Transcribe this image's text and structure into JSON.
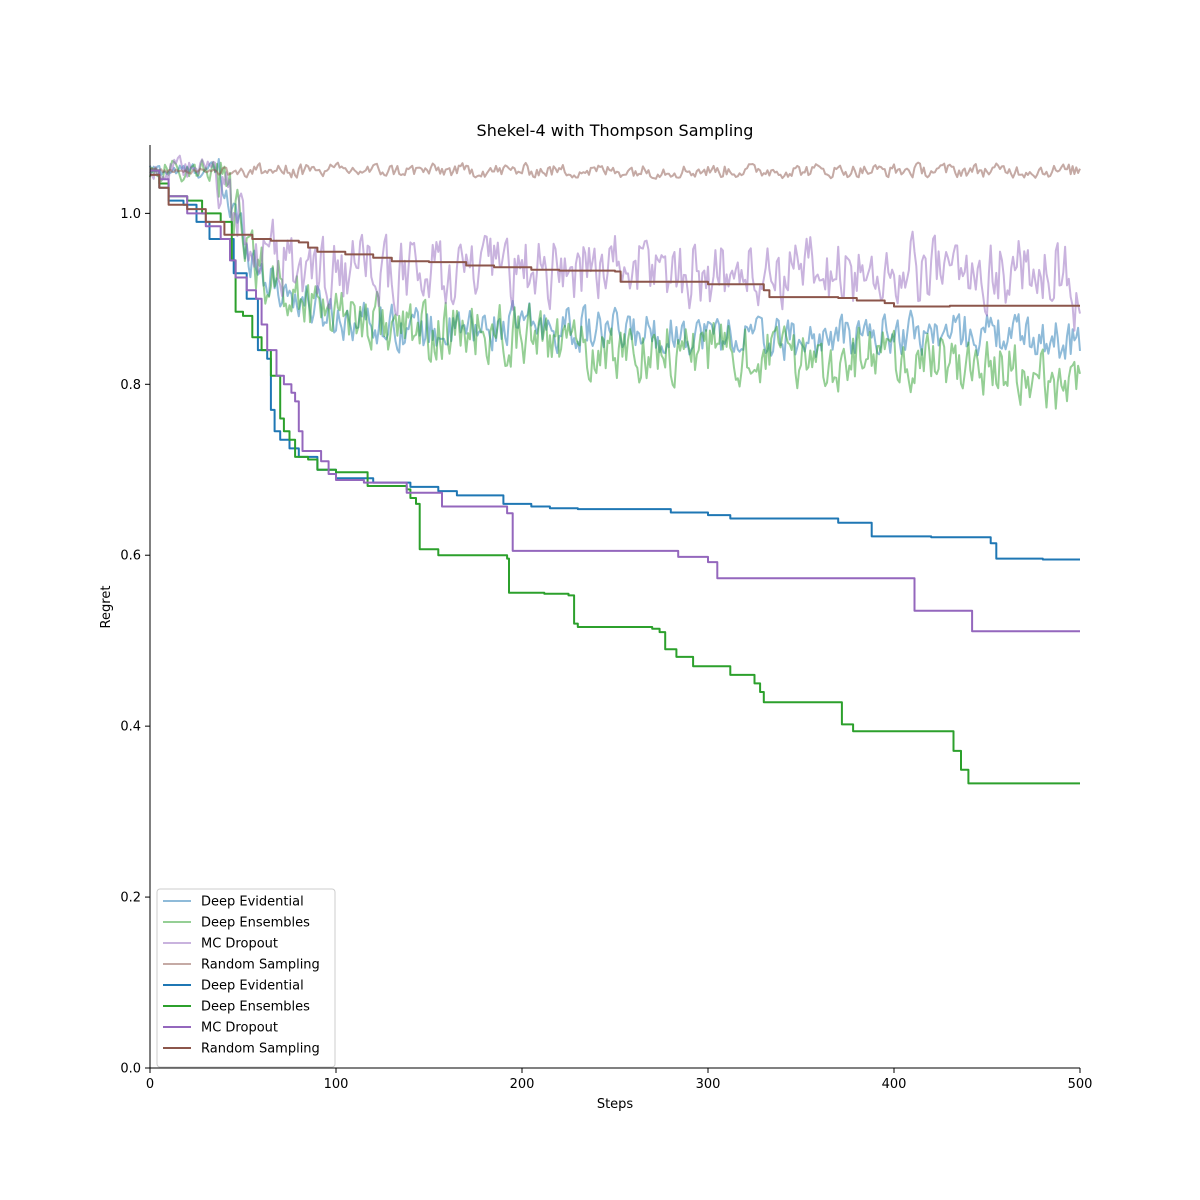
{
  "chart_data": {
    "type": "line",
    "title": "Shekel-4 with Thompson Sampling",
    "xlabel": "Steps",
    "ylabel": "Regret",
    "xlim": [
      0,
      500
    ],
    "ylim": [
      0,
      1.08
    ],
    "xticks": [
      0,
      100,
      200,
      300,
      400,
      500
    ],
    "yticks": [
      0.0,
      0.2,
      0.4,
      0.6,
      0.8,
      1.0
    ],
    "xtick_labels": [
      "0",
      "100",
      "200",
      "300",
      "400",
      "500"
    ],
    "ytick_labels": [
      "0.0",
      "0.2",
      "0.4",
      "0.6",
      "0.8",
      "1.0"
    ],
    "legend_position": "lower-left",
    "grid": false,
    "series": [
      {
        "name": "Deep Evidential",
        "color": "#1f77b4",
        "alpha": 0.5,
        "style": "noisy",
        "points": [
          [
            0,
            1.05
          ],
          [
            10,
            1.05
          ],
          [
            20,
            1.05
          ],
          [
            30,
            1.05
          ],
          [
            36,
            1.05
          ],
          [
            45,
            1.0
          ],
          [
            55,
            0.95
          ],
          [
            65,
            0.92
          ],
          [
            80,
            0.9
          ],
          [
            100,
            0.88
          ],
          [
            130,
            0.87
          ],
          [
            160,
            0.86
          ],
          [
            200,
            0.87
          ],
          [
            250,
            0.86
          ],
          [
            300,
            0.86
          ],
          [
            350,
            0.85
          ],
          [
            400,
            0.86
          ],
          [
            450,
            0.86
          ],
          [
            500,
            0.85
          ]
        ],
        "noise": 0.025
      },
      {
        "name": "Deep Ensembles",
        "color": "#2ca02c",
        "alpha": 0.5,
        "style": "noisy",
        "points": [
          [
            0,
            1.05
          ],
          [
            10,
            1.05
          ],
          [
            20,
            1.05
          ],
          [
            30,
            1.05
          ],
          [
            36,
            1.05
          ],
          [
            45,
            1.0
          ],
          [
            55,
            0.95
          ],
          [
            65,
            0.92
          ],
          [
            80,
            0.9
          ],
          [
            100,
            0.89
          ],
          [
            140,
            0.86
          ],
          [
            180,
            0.86
          ],
          [
            200,
            0.86
          ],
          [
            230,
            0.84
          ],
          [
            260,
            0.84
          ],
          [
            300,
            0.84
          ],
          [
            350,
            0.83
          ],
          [
            400,
            0.83
          ],
          [
            450,
            0.82
          ],
          [
            490,
            0.8
          ],
          [
            500,
            0.82
          ]
        ],
        "noise": 0.035
      },
      {
        "name": "MC Dropout",
        "color": "#9467bd",
        "alpha": 0.5,
        "style": "noisy",
        "points": [
          [
            0,
            1.05
          ],
          [
            10,
            1.05
          ],
          [
            20,
            1.05
          ],
          [
            30,
            1.05
          ],
          [
            36,
            1.05
          ],
          [
            45,
            1.0
          ],
          [
            60,
            0.96
          ],
          [
            80,
            0.93
          ],
          [
            100,
            0.93
          ],
          [
            150,
            0.93
          ],
          [
            200,
            0.93
          ],
          [
            250,
            0.94
          ],
          [
            300,
            0.93
          ],
          [
            350,
            0.93
          ],
          [
            400,
            0.93
          ],
          [
            450,
            0.93
          ],
          [
            490,
            0.94
          ],
          [
            500,
            0.87
          ]
        ],
        "noise": 0.04
      },
      {
        "name": "Random Sampling",
        "color": "#8c564b",
        "alpha": 0.5,
        "style": "noisy",
        "points": [
          [
            0,
            1.05
          ],
          [
            100,
            1.05
          ],
          [
            200,
            1.05
          ],
          [
            300,
            1.05
          ],
          [
            400,
            1.05
          ],
          [
            500,
            1.05
          ]
        ],
        "noise": 0.008
      },
      {
        "name": "Deep Evidential",
        "color": "#1f77b4",
        "alpha": 1,
        "style": "step",
        "points": [
          [
            0,
            1.05
          ],
          [
            5,
            1.03
          ],
          [
            10,
            1.015
          ],
          [
            18,
            1.01
          ],
          [
            25,
            0.99
          ],
          [
            32,
            0.97
          ],
          [
            38,
            0.97
          ],
          [
            45,
            0.93
          ],
          [
            52,
            0.9
          ],
          [
            58,
            0.84
          ],
          [
            63,
            0.83
          ],
          [
            65,
            0.77
          ],
          [
            67,
            0.745
          ],
          [
            70,
            0.735
          ],
          [
            75,
            0.725
          ],
          [
            80,
            0.715
          ],
          [
            90,
            0.7
          ],
          [
            100,
            0.69
          ],
          [
            120,
            0.685
          ],
          [
            140,
            0.68
          ],
          [
            155,
            0.675
          ],
          [
            165,
            0.67
          ],
          [
            190,
            0.66
          ],
          [
            205,
            0.657
          ],
          [
            215,
            0.655
          ],
          [
            230,
            0.654
          ],
          [
            280,
            0.65
          ],
          [
            300,
            0.647
          ],
          [
            312,
            0.643
          ],
          [
            370,
            0.638
          ],
          [
            388,
            0.622
          ],
          [
            420,
            0.621
          ],
          [
            452,
            0.614
          ],
          [
            455,
            0.596
          ],
          [
            480,
            0.595
          ],
          [
            500,
            0.595
          ]
        ]
      },
      {
        "name": "Deep Ensembles",
        "color": "#2ca02c",
        "alpha": 1,
        "style": "step",
        "points": [
          [
            0,
            1.05
          ],
          [
            5,
            1.035
          ],
          [
            10,
            1.02
          ],
          [
            20,
            1.015
          ],
          [
            28,
            1.0
          ],
          [
            38,
            0.99
          ],
          [
            44,
            0.945
          ],
          [
            46,
            0.885
          ],
          [
            50,
            0.88
          ],
          [
            55,
            0.855
          ],
          [
            60,
            0.84
          ],
          [
            65,
            0.81
          ],
          [
            70,
            0.76
          ],
          [
            72,
            0.745
          ],
          [
            75,
            0.735
          ],
          [
            78,
            0.715
          ],
          [
            85,
            0.712
          ],
          [
            90,
            0.7
          ],
          [
            100,
            0.697
          ],
          [
            117,
            0.681
          ],
          [
            138,
            0.677
          ],
          [
            140,
            0.667
          ],
          [
            143,
            0.66
          ],
          [
            145,
            0.607
          ],
          [
            155,
            0.6
          ],
          [
            192,
            0.596
          ],
          [
            193,
            0.556
          ],
          [
            212,
            0.555
          ],
          [
            225,
            0.553
          ],
          [
            228,
            0.52
          ],
          [
            230,
            0.516
          ],
          [
            270,
            0.514
          ],
          [
            274,
            0.51
          ],
          [
            277,
            0.49
          ],
          [
            283,
            0.481
          ],
          [
            292,
            0.47
          ],
          [
            312,
            0.46
          ],
          [
            325,
            0.45
          ],
          [
            328,
            0.44
          ],
          [
            330,
            0.428
          ],
          [
            370,
            0.428
          ],
          [
            372,
            0.402
          ],
          [
            378,
            0.394
          ],
          [
            430,
            0.394
          ],
          [
            432,
            0.371
          ],
          [
            436,
            0.349
          ],
          [
            440,
            0.333
          ],
          [
            500,
            0.333
          ]
        ]
      },
      {
        "name": "MC Dropout",
        "color": "#9467bd",
        "alpha": 1,
        "style": "step",
        "points": [
          [
            0,
            1.05
          ],
          [
            5,
            1.04
          ],
          [
            10,
            1.02
          ],
          [
            20,
            1.0
          ],
          [
            30,
            0.985
          ],
          [
            38,
            0.97
          ],
          [
            43,
            0.945
          ],
          [
            46,
            0.925
          ],
          [
            52,
            0.91
          ],
          [
            57,
            0.9
          ],
          [
            60,
            0.87
          ],
          [
            63,
            0.84
          ],
          [
            68,
            0.81
          ],
          [
            72,
            0.8
          ],
          [
            76,
            0.79
          ],
          [
            78,
            0.78
          ],
          [
            80,
            0.745
          ],
          [
            82,
            0.722
          ],
          [
            92,
            0.71
          ],
          [
            96,
            0.695
          ],
          [
            100,
            0.688
          ],
          [
            115,
            0.685
          ],
          [
            138,
            0.673
          ],
          [
            157,
            0.657
          ],
          [
            192,
            0.649
          ],
          [
            195,
            0.605
          ],
          [
            230,
            0.605
          ],
          [
            275,
            0.605
          ],
          [
            284,
            0.598
          ],
          [
            300,
            0.592
          ],
          [
            305,
            0.573
          ],
          [
            360,
            0.573
          ],
          [
            410,
            0.573
          ],
          [
            411,
            0.535
          ],
          [
            440,
            0.535
          ],
          [
            442,
            0.511
          ],
          [
            500,
            0.511
          ]
        ]
      },
      {
        "name": "Random Sampling",
        "color": "#8c564b",
        "alpha": 1,
        "style": "step",
        "points": [
          [
            0,
            1.045
          ],
          [
            5,
            1.03
          ],
          [
            10,
            1.01
          ],
          [
            20,
            1.005
          ],
          [
            30,
            0.99
          ],
          [
            40,
            0.975
          ],
          [
            55,
            0.97
          ],
          [
            65,
            0.968
          ],
          [
            80,
            0.966
          ],
          [
            85,
            0.96
          ],
          [
            90,
            0.955
          ],
          [
            105,
            0.952
          ],
          [
            120,
            0.948
          ],
          [
            130,
            0.944
          ],
          [
            150,
            0.943
          ],
          [
            170,
            0.939
          ],
          [
            185,
            0.937
          ],
          [
            205,
            0.934
          ],
          [
            220,
            0.933
          ],
          [
            250,
            0.932
          ],
          [
            253,
            0.92
          ],
          [
            270,
            0.92
          ],
          [
            300,
            0.917
          ],
          [
            330,
            0.91
          ],
          [
            333,
            0.902
          ],
          [
            370,
            0.901
          ],
          [
            380,
            0.898
          ],
          [
            395,
            0.895
          ],
          [
            400,
            0.891
          ],
          [
            430,
            0.892
          ],
          [
            500,
            0.892
          ]
        ]
      }
    ]
  }
}
